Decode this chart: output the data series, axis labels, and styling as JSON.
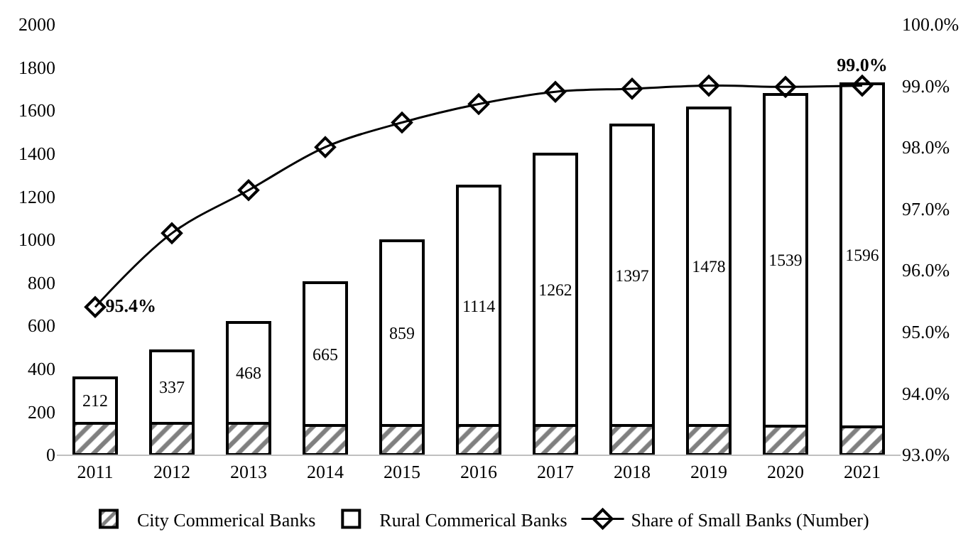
{
  "chart_data": {
    "type": "bar",
    "stacked": true,
    "categories": [
      "2011",
      "2012",
      "2013",
      "2014",
      "2015",
      "2016",
      "2017",
      "2018",
      "2019",
      "2020",
      "2021"
    ],
    "series": [
      {
        "name": "City Commerical Banks",
        "color": "#000000",
        "values": [
          144,
          144,
          145,
          134,
          134,
          134,
          134,
          134,
          134,
          133,
          128
        ]
      },
      {
        "name": "Rural Commerical Banks",
        "color": "#ffffff",
        "values": [
          212,
          337,
          468,
          665,
          859,
          1114,
          1262,
          1397,
          1478,
          1539,
          1596
        ],
        "value_labels": [
          "212",
          "337",
          "468",
          "665",
          "859",
          "1114",
          "1262",
          "1397",
          "1478",
          "1539",
          "1596"
        ]
      },
      {
        "name": "Share of Small Banks (Number)",
        "type": "line",
        "axis": "y2",
        "color": "#000000",
        "marker": "diamond",
        "values": [
          95.4,
          96.6,
          97.3,
          98.0,
          98.4,
          98.7,
          98.9,
          98.95,
          99.0,
          98.98,
          99.0
        ],
        "value_labels": [
          "95.4%",
          null,
          null,
          null,
          null,
          null,
          null,
          null,
          null,
          null,
          "99.0%"
        ]
      }
    ],
    "ylim": [
      0,
      2000
    ],
    "yticks": [
      0,
      200,
      400,
      600,
      800,
      1000,
      1200,
      1400,
      1600,
      1800,
      2000
    ],
    "y2lim": [
      93,
      100
    ],
    "y2ticks": [
      {
        "value": 93,
        "label": "93.0%"
      },
      {
        "value": 94,
        "label": "94.0%"
      },
      {
        "value": 95,
        "label": "95.0%"
      },
      {
        "value": 96,
        "label": "96.0%"
      },
      {
        "value": 97,
        "label": "97.0%"
      },
      {
        "value": 98,
        "label": "98.0%"
      },
      {
        "value": 99,
        "label": "99.0%"
      },
      {
        "value": 100,
        "label": "100.0%"
      }
    ],
    "legend": "bottom"
  }
}
